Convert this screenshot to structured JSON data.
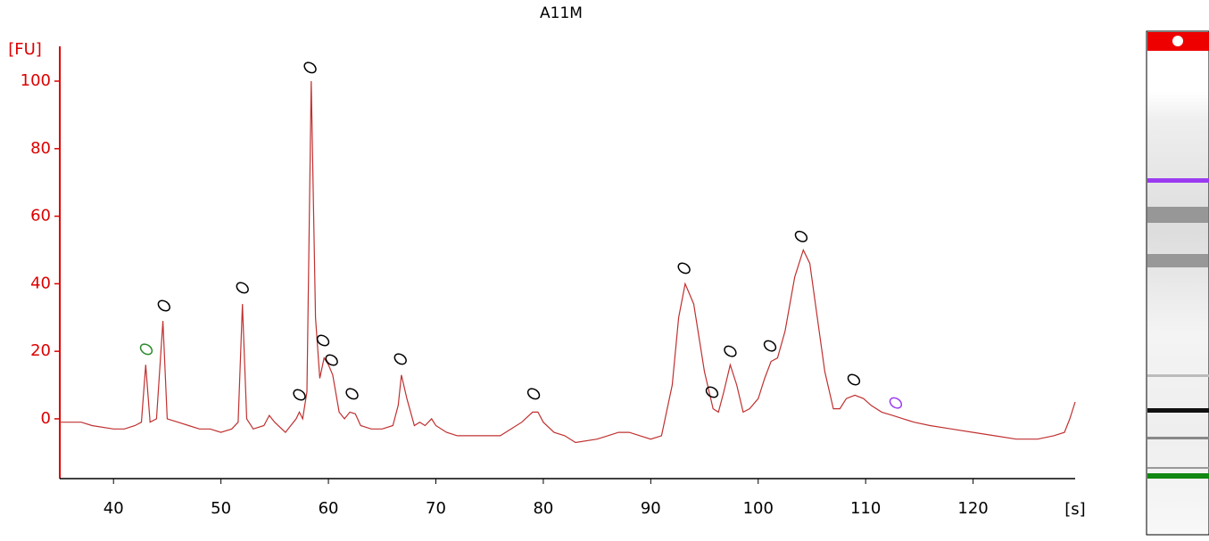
{
  "chart_data": {
    "type": "line",
    "title": "A11M",
    "y_label": "[FU]",
    "x_label": "[s]",
    "color": "#c03030",
    "axis_color": "#dd0000",
    "xlim": [
      35,
      129.5
    ],
    "ylim": [
      -17.7,
      110.3
    ],
    "xticks": [
      40,
      50,
      60,
      70,
      80,
      90,
      100,
      110,
      120
    ],
    "yticks": [
      0,
      20,
      40,
      60,
      80,
      100
    ],
    "x": [
      35,
      37,
      38,
      40,
      41,
      42,
      42.6,
      43,
      43.4,
      44,
      44.6,
      45,
      46,
      47,
      48,
      49,
      50,
      51,
      51.6,
      52,
      52.4,
      53,
      54,
      54.5,
      55,
      56,
      57,
      57.3,
      57.6,
      58,
      58.4,
      58.8,
      59.2,
      59.6,
      60,
      60.4,
      61,
      61.5,
      62,
      62.5,
      63,
      64,
      65,
      66,
      66.5,
      66.8,
      67.3,
      68,
      68.5,
      69,
      69.6,
      70,
      71,
      72,
      74,
      76,
      77,
      78,
      79,
      79.5,
      80,
      81,
      82,
      83,
      85,
      86,
      87,
      88,
      89,
      90,
      91,
      92,
      92.6,
      93.2,
      94,
      95,
      95.8,
      96.3,
      96.8,
      97.4,
      98,
      98.6,
      99.2,
      100,
      100.6,
      101.2,
      101.8,
      102.5,
      103.4,
      104.2,
      104.8,
      105.5,
      106.2,
      107,
      107.6,
      108.2,
      109,
      109.8,
      110.5,
      111.5,
      112.5,
      113.5,
      114.5,
      116,
      118,
      120,
      122,
      124,
      126,
      127.5,
      128.5,
      129,
      129.5
    ],
    "values": [
      -1,
      -1,
      -2,
      -3,
      -3,
      -2,
      -1,
      16,
      -1,
      0,
      29,
      0,
      -1,
      -2,
      -3,
      -3,
      -4,
      -3,
      -1,
      34,
      0,
      -3,
      -2,
      1,
      -1,
      -4,
      0,
      2,
      0,
      8,
      100,
      30,
      12,
      18,
      16,
      13,
      2,
      0,
      2,
      1.5,
      -2,
      -3,
      -3,
      -2,
      4,
      13,
      6,
      -2,
      -1,
      -2,
      0,
      -2,
      -4,
      -5,
      -5,
      -5,
      -3,
      -1,
      2,
      2,
      -1,
      -4,
      -5,
      -7,
      -6,
      -5,
      -4,
      -4,
      -5,
      -6,
      -5,
      10,
      30,
      40,
      34,
      14,
      3,
      2,
      8,
      16,
      10,
      2,
      3,
      6,
      12,
      17,
      18,
      26,
      42,
      50,
      46,
      30,
      14,
      3,
      3,
      6,
      7,
      6,
      4,
      2,
      1,
      0,
      -1,
      -2,
      -3,
      -4,
      -5,
      -6,
      -6,
      -5,
      -4,
      0,
      5
    ],
    "markers": [
      {
        "x": 43.05,
        "y": 20.6,
        "color": "#2a8a2a"
      },
      {
        "x": 44.7,
        "y": 33.5,
        "color": "#000000"
      },
      {
        "x": 52.0,
        "y": 38.8,
        "color": "#000000"
      },
      {
        "x": 57.3,
        "y": 7.1,
        "color": "#000000"
      },
      {
        "x": 58.3,
        "y": 104,
        "color": "#000000"
      },
      {
        "x": 59.5,
        "y": 23.2,
        "color": "#000000"
      },
      {
        "x": 60.3,
        "y": 17.4,
        "color": "#000000"
      },
      {
        "x": 62.2,
        "y": 7.4,
        "color": "#000000"
      },
      {
        "x": 66.7,
        "y": 17.7,
        "color": "#000000"
      },
      {
        "x": 79.1,
        "y": 7.4,
        "color": "#000000"
      },
      {
        "x": 93.1,
        "y": 44.6,
        "color": "#000000"
      },
      {
        "x": 95.7,
        "y": 7.9,
        "color": "#000000"
      },
      {
        "x": 97.4,
        "y": 20,
        "color": "#000000"
      },
      {
        "x": 101.1,
        "y": 21.6,
        "color": "#000000"
      },
      {
        "x": 104.0,
        "y": 54,
        "color": "#000000"
      },
      {
        "x": 108.9,
        "y": 11.6,
        "color": "#000000"
      },
      {
        "x": 112.8,
        "y": 4.7,
        "color": "#9b3bf0"
      }
    ]
  }
}
